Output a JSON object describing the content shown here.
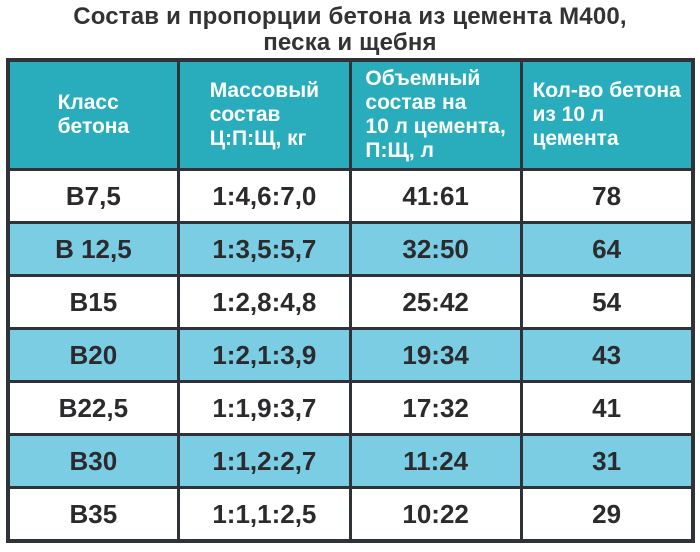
{
  "title": "Состав и пропорции бетона из цемента М400,\nпеска и щебня",
  "colors": {
    "header_bg": "#29adbc",
    "row_bg": "#ffffff",
    "row_alt_bg": "#7bcde3",
    "border": "#2f3338",
    "header_text": "#ffffff",
    "body_text": "#2b2b2d",
    "title_text": "#333333"
  },
  "chart_data": {
    "type": "table",
    "title": "Состав и пропорции бетона из цемента М400, песка и щебня",
    "columns": [
      "Класс бетона",
      "Массовый состав Ц:П:Щ, кг",
      "Объемный состав на 10 л цемента, П:Щ, л",
      "Кол-во бетона из 10 л цемента"
    ],
    "header_display": [
      "Класс\nбетона",
      "Массовый\nсостав\nЦ:П:Щ, кг",
      "Объемный\nсостав на\n10 л цемента,\nП:Щ, л",
      "Кол-во бетона\nиз 10 л\nцемента"
    ],
    "rows": [
      [
        "В7,5",
        "1:4,6:7,0",
        "41:61",
        "78"
      ],
      [
        "В 12,5",
        "1:3,5:5,7",
        "32:50",
        "64"
      ],
      [
        "В15",
        "1:2,8:4,8",
        "25:42",
        "54"
      ],
      [
        "В20",
        "1:2,1:3,9",
        "19:34",
        "43"
      ],
      [
        "В22,5",
        "1:1,9:3,7",
        "17:32",
        "41"
      ],
      [
        "В30",
        "1:1,2:2,7",
        "11:24",
        "31"
      ],
      [
        "В35",
        "1:1,1:2,5",
        "10:22",
        "29"
      ]
    ]
  }
}
